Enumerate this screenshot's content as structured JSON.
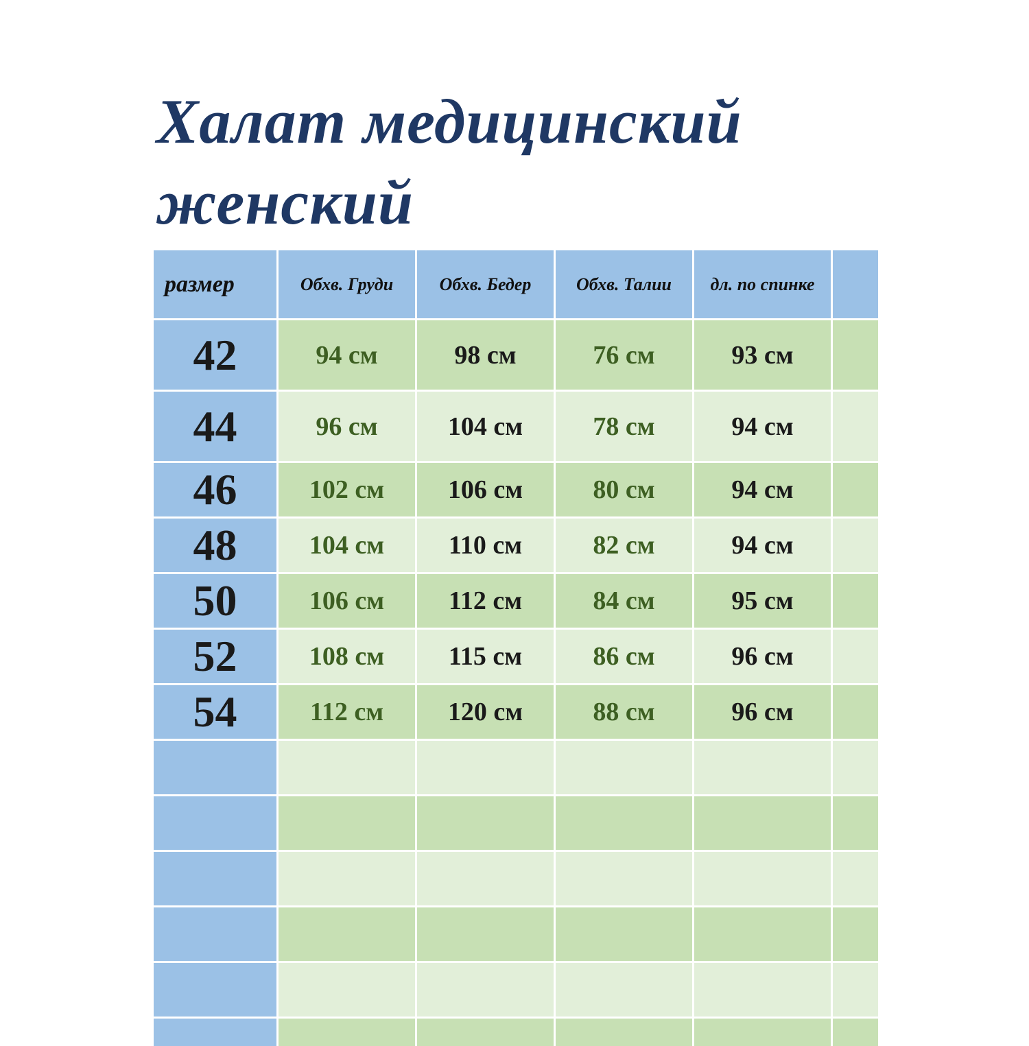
{
  "title_lines": [
    "Халат медицинский",
    "женский"
  ],
  "colors": {
    "title": "#1f3864",
    "header_bg": "#9bc1e6",
    "row_dark": "#c7e0b4",
    "row_light": "#e2efd9",
    "green_text": "#3d5f22"
  },
  "table": {
    "headers": [
      "размер",
      "Обхв. Груди",
      "Обхв. Бедер",
      "Обхв. Талии",
      "дл. по спинке",
      ""
    ],
    "rows": [
      {
        "size": "42",
        "chest": "94 см",
        "hips": "98 см",
        "waist": "76 см",
        "back_length": "93 см"
      },
      {
        "size": "44",
        "chest": "96 см",
        "hips": "104 см",
        "waist": "78 см",
        "back_length": "94 см"
      },
      {
        "size": "46",
        "chest": "102 см",
        "hips": "106 см",
        "waist": "80 см",
        "back_length": "94 см"
      },
      {
        "size": "48",
        "chest": "104 см",
        "hips": "110 см",
        "waist": "82 см",
        "back_length": "94 см"
      },
      {
        "size": "50",
        "chest": "106 см",
        "hips": "112 см",
        "waist": "84 см",
        "back_length": "95 см"
      },
      {
        "size": "52",
        "chest": "108 см",
        "hips": "115 см",
        "waist": "86 см",
        "back_length": "96 см"
      },
      {
        "size": "54",
        "chest": "112 см",
        "hips": "120 см",
        "waist": "88 см",
        "back_length": "96 см"
      }
    ],
    "empty_rows": 6
  }
}
